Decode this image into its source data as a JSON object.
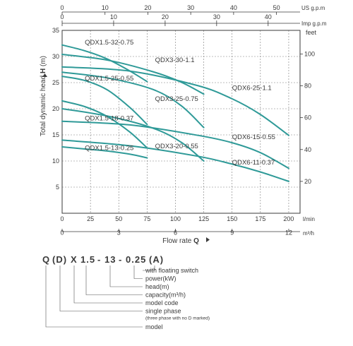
{
  "chart_data": {
    "type": "line",
    "axes": {
      "us_gpm": {
        "label": "US g.p.m",
        "ticks": [
          0,
          10,
          20,
          30,
          40,
          50
        ],
        "range": [
          0,
          55.5
        ]
      },
      "imp_gpm": {
        "label": "Imp g.p.m",
        "ticks": [
          0,
          10,
          20,
          30,
          40
        ],
        "range": [
          0,
          46.2
        ]
      },
      "lmin": {
        "label": "l/min",
        "ticks": [
          0,
          25,
          50,
          75,
          100,
          125,
          150,
          175,
          200
        ],
        "range": [
          0,
          210
        ]
      },
      "m3h": {
        "label": "m³/h",
        "ticks": [
          0,
          3,
          6,
          9,
          12
        ],
        "range": [
          0,
          12.6
        ]
      },
      "head_m": {
        "ticks": [
          5,
          10,
          15,
          20,
          25,
          30,
          35
        ],
        "range": [
          0,
          35
        ]
      },
      "head_feet": {
        "label": "feet",
        "ticks": [
          20,
          40,
          60,
          80,
          100
        ],
        "range": [
          0,
          114.8
        ]
      }
    },
    "ylabel": "Total dynamic head",
    "ylabel_bold": "H",
    "ylabel_unit": "(m)",
    "xlabel": "Flow rate",
    "xlabel_bold": "Q",
    "grid": true,
    "series": [
      {
        "name": "QDX1.5-32-0.75",
        "x": [
          0,
          20,
          40,
          60,
          75
        ],
        "y": [
          32.2,
          31.1,
          29.5,
          27.2,
          25.2
        ]
      },
      {
        "name": "QDX3-30-1.1",
        "x": [
          0,
          40,
          80,
          105,
          125
        ],
        "y": [
          30.4,
          29.3,
          27.1,
          25.1,
          22.8
        ]
      },
      {
        "name": "QDX6-25-1.1",
        "x": [
          0,
          60,
          120,
          150,
          175,
          200
        ],
        "y": [
          28,
          27.2,
          24.4,
          21.9,
          18.9,
          14.9
        ]
      },
      {
        "name": "QDX1.5-25-0.55",
        "x": [
          0,
          20,
          40,
          60,
          75
        ],
        "y": [
          26.2,
          25.4,
          23.6,
          20.2,
          17
        ]
      },
      {
        "name": "QDX3-25-0.75",
        "x": [
          0,
          40,
          80,
          105,
          125
        ],
        "y": [
          27,
          25.9,
          23.7,
          20.6,
          16.4
        ]
      },
      {
        "name": "QDX1.5-18-0.37",
        "x": [
          0,
          20,
          40,
          60,
          75
        ],
        "y": [
          21.5,
          20.4,
          18.5,
          15.5,
          12.5
        ]
      },
      {
        "name": "QDX3-20-0.55",
        "x": [
          0,
          40,
          80,
          105,
          125
        ],
        "y": [
          20,
          18.6,
          16.3,
          13.6,
          10
        ]
      },
      {
        "name": "QDX6-15-0.55",
        "x": [
          0,
          60,
          120,
          150,
          175,
          200
        ],
        "y": [
          17.6,
          16.9,
          14.9,
          13.5,
          11.6,
          8.6
        ]
      },
      {
        "name": "QDX6-11-0.37",
        "x": [
          0,
          60,
          120,
          150,
          175,
          200
        ],
        "y": [
          14,
          12.9,
          10.9,
          9.4,
          7.9,
          6.1
        ]
      },
      {
        "name": "QDX1.5-13-0.25",
        "x": [
          0,
          20,
          40,
          60,
          75
        ],
        "y": [
          12.7,
          12.3,
          11.9,
          11.3,
          10.6
        ]
      }
    ],
    "curve_labels": [
      {
        "text": "QDX1.5-32-0.75",
        "x": 20,
        "y": 32.3
      },
      {
        "text": "QDX3-30-1.1",
        "x": 82,
        "y": 28.9
      },
      {
        "text": "QDX6-25-1.1",
        "x": 150,
        "y": 23.6
      },
      {
        "text": "QDX1.5-25-0.55",
        "x": 20,
        "y": 25.4
      },
      {
        "text": "QDX3-25-0.75",
        "x": 82,
        "y": 21.5
      },
      {
        "text": "QDX1.5-18-0.37",
        "x": 20,
        "y": 17.8
      },
      {
        "text": "QDX6-15-0.55",
        "x": 150,
        "y": 14.2
      },
      {
        "text": "QDX1.5-13-0.25",
        "x": 20,
        "y": 12.1
      },
      {
        "text": "QDX3-20-0.55",
        "x": 82,
        "y": 12.4
      },
      {
        "text": "QDX6-11-0.37",
        "x": 150,
        "y": 9.3
      }
    ],
    "colors": {
      "curve": "#2f9a98",
      "grid": "#7a7a7a",
      "axis": "#3a3a3a"
    }
  },
  "model_code": {
    "parts": [
      "Q",
      "(D)",
      "X",
      "1.5",
      "-",
      "13",
      "-",
      "0.25",
      "(A)"
    ],
    "legend": [
      {
        "label": "with floating switch",
        "note": ""
      },
      {
        "label": "power(kW)",
        "note": ""
      },
      {
        "label": "head(m)",
        "note": ""
      },
      {
        "label": "capacity(m³/h)",
        "note": ""
      },
      {
        "label": "model code",
        "note": ""
      },
      {
        "label": "single phase",
        "note": "(three phase with no D marked)"
      },
      {
        "label": "model",
        "note": ""
      }
    ]
  }
}
